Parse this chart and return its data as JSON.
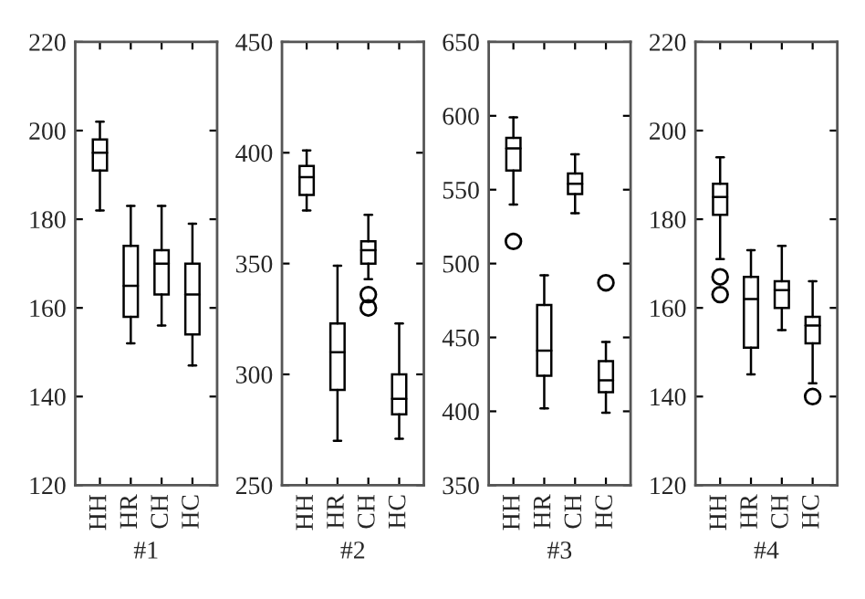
{
  "chart_data": [
    {
      "type": "box",
      "xlabel": "#1",
      "categories": [
        "HH",
        "HR",
        "CH",
        "HC"
      ],
      "ylim": [
        120,
        220
      ],
      "yticks": [
        120,
        140,
        160,
        180,
        200,
        220
      ],
      "color": "#000000",
      "boxes": [
        {
          "low": 182,
          "q1": 191,
          "median": 195,
          "q3": 198,
          "high": 202
        },
        {
          "low": 152,
          "q1": 158,
          "median": 165,
          "q3": 174,
          "high": 183
        },
        {
          "low": 156,
          "q1": 163,
          "median": 170,
          "q3": 173,
          "high": 183
        },
        {
          "low": 147,
          "q1": 154,
          "median": 163,
          "q3": 170,
          "high": 179
        }
      ]
    },
    {
      "type": "box",
      "xlabel": "#2",
      "categories": [
        "HH",
        "HR",
        "CH",
        "HC"
      ],
      "ylim": [
        250,
        450
      ],
      "yticks": [
        250,
        300,
        350,
        400,
        450
      ],
      "color": "#000000",
      "boxes": [
        {
          "low": 374,
          "q1": 381,
          "median": 389,
          "q3": 394,
          "high": 401
        },
        {
          "low": 270,
          "q1": 293,
          "median": 310,
          "q3": 323,
          "high": 349
        },
        {
          "low": 343,
          "q1": 350,
          "median": 356,
          "q3": 360,
          "high": 372,
          "outliers": [
            330,
            336
          ]
        },
        {
          "low": 271,
          "q1": 282,
          "median": 289,
          "q3": 300,
          "high": 323
        }
      ]
    },
    {
      "type": "box",
      "xlabel": "#3",
      "categories": [
        "HH",
        "HR",
        "CH",
        "HC"
      ],
      "ylim": [
        350,
        650
      ],
      "yticks": [
        350,
        400,
        450,
        500,
        550,
        600,
        650
      ],
      "color": "#000000",
      "boxes": [
        {
          "low": 540,
          "q1": 563,
          "median": 578,
          "q3": 585,
          "high": 599,
          "outliers": [
            515
          ]
        },
        {
          "low": 402,
          "q1": 424,
          "median": 441,
          "q3": 472,
          "high": 492
        },
        {
          "low": 534,
          "q1": 547,
          "median": 554,
          "q3": 561,
          "high": 574
        },
        {
          "low": 399,
          "q1": 413,
          "median": 421,
          "q3": 434,
          "high": 447,
          "outliers": [
            487
          ]
        }
      ]
    },
    {
      "type": "box",
      "xlabel": "#4",
      "categories": [
        "HH",
        "HR",
        "CH",
        "HC"
      ],
      "ylim": [
        120,
        220
      ],
      "yticks": [
        120,
        140,
        160,
        180,
        200,
        220
      ],
      "color": "#000000",
      "boxes": [
        {
          "low": 171,
          "q1": 181,
          "median": 185,
          "q3": 188,
          "high": 194,
          "outliers": [
            163,
            167
          ]
        },
        {
          "low": 145,
          "q1": 151,
          "median": 162,
          "q3": 167,
          "high": 173
        },
        {
          "low": 155,
          "q1": 160,
          "median": 164,
          "q3": 166,
          "high": 174
        },
        {
          "low": 143,
          "q1": 152,
          "median": 156,
          "q3": 158,
          "high": 166,
          "outliers": [
            140
          ]
        }
      ]
    }
  ]
}
